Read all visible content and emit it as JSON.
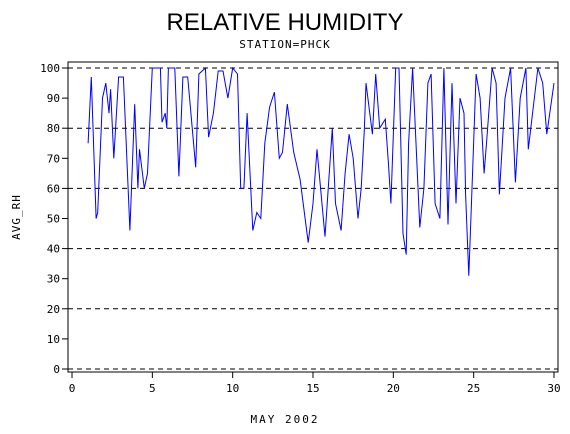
{
  "chart_data": {
    "type": "line",
    "title": "RELATIVE HUMIDITY",
    "subtitle": "STATION=PHCK",
    "x_label": "MAY 2002",
    "y_label": "AVG_RH",
    "xlim": [
      -0.25,
      30.25
    ],
    "ylim": [
      -1,
      102
    ],
    "xticks": [
      0,
      5,
      10,
      15,
      20,
      25,
      30
    ],
    "yticks": [
      0,
      10,
      20,
      30,
      40,
      50,
      60,
      70,
      80,
      90,
      100
    ],
    "grid_lines": [
      0,
      20,
      40,
      60,
      80,
      100
    ],
    "series": [
      {
        "name": "AVG_RH",
        "color": "#0000ff",
        "x": [
          1.0,
          1.2,
          1.5,
          1.6,
          1.9,
          2.1,
          2.3,
          2.4,
          2.6,
          2.9,
          3.2,
          3.6,
          3.9,
          4.1,
          4.2,
          4.5,
          4.7,
          5.0,
          5.5,
          5.6,
          5.8,
          5.9,
          6.0,
          6.4,
          6.65,
          6.9,
          7.2,
          7.7,
          7.9,
          8.3,
          8.5,
          8.8,
          9.1,
          9.4,
          9.7,
          10.0,
          10.3,
          10.5,
          10.7,
          10.9,
          11.25,
          11.5,
          11.75,
          12.0,
          12.3,
          12.6,
          12.9,
          13.1,
          13.4,
          13.8,
          14.2,
          14.7,
          15.0,
          15.25,
          15.75,
          16.2,
          16.4,
          16.75,
          17.0,
          17.25,
          17.5,
          17.8,
          18.0,
          18.2,
          18.3,
          18.7,
          18.9,
          19.15,
          19.5,
          19.7,
          19.85,
          20.15,
          20.35,
          20.6,
          20.8,
          20.95,
          21.2,
          21.65,
          21.9,
          22.15,
          22.35,
          22.6,
          22.9,
          23.15,
          23.4,
          23.65,
          23.9,
          24.15,
          24.4,
          24.5,
          24.7,
          24.9,
          25.15,
          25.4,
          25.65,
          25.8,
          26.15,
          26.4,
          26.6,
          26.95,
          27.3,
          27.6,
          27.9,
          28.25,
          28.4,
          28.6,
          29.0,
          29.3,
          29.55,
          30.0
        ],
        "values": [
          75,
          97,
          50,
          52,
          90,
          95,
          85,
          93,
          70,
          97,
          97,
          46,
          88,
          60,
          73,
          60,
          65,
          100,
          100,
          82,
          85,
          80,
          100,
          100,
          64,
          97,
          97,
          67,
          98,
          100,
          77,
          85,
          99,
          99,
          90,
          100,
          98,
          60,
          60,
          85,
          46,
          52,
          50,
          75,
          87,
          92,
          70,
          72,
          88,
          72,
          63,
          42,
          55,
          73,
          44,
          80,
          55,
          46,
          65,
          78,
          70,
          50,
          60,
          80,
          95,
          78,
          98,
          80,
          83,
          68,
          55,
          100,
          100,
          45,
          38,
          75,
          100,
          47,
          60,
          95,
          98,
          55,
          50,
          100,
          48,
          95,
          55,
          90,
          85,
          58,
          31,
          60,
          98,
          90,
          65,
          75,
          100,
          95,
          58,
          90,
          100,
          62,
          90,
          100,
          73,
          82,
          100,
          95,
          78,
          95
        ]
      }
    ]
  }
}
